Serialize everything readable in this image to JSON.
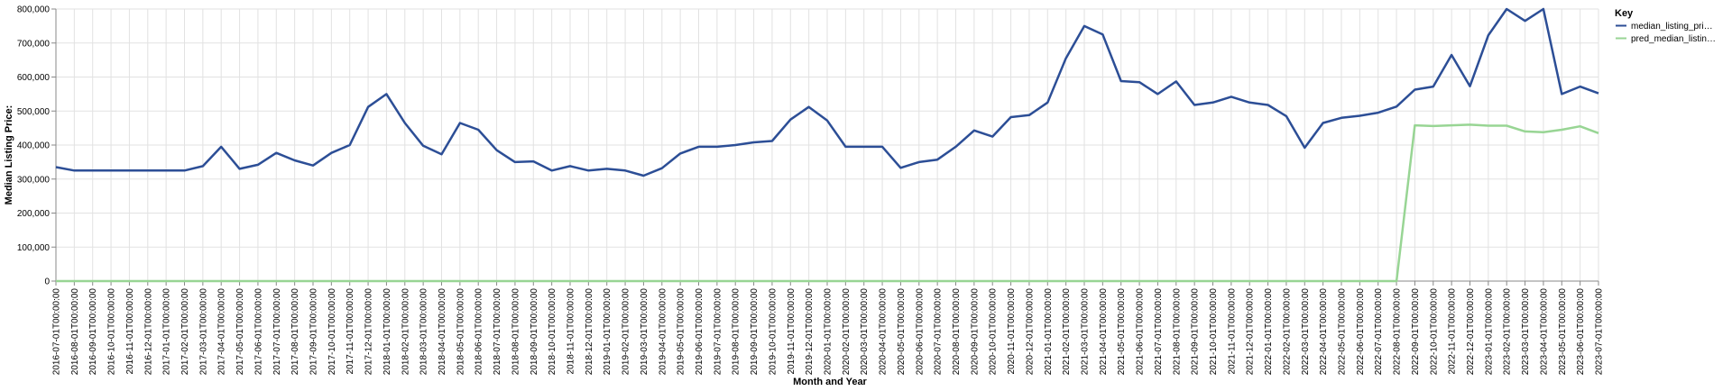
{
  "chart_data": {
    "type": "line",
    "xlabel": "Month and Year",
    "ylabel": "Median Listing Price:",
    "ylim": [
      0,
      800000
    ],
    "yticks": [
      "0",
      "100,000",
      "200,000",
      "300,000",
      "400,000",
      "500,000",
      "600,000",
      "700,000",
      "800,000"
    ],
    "grid": true,
    "legend": {
      "title": "Key",
      "placement": "top-right",
      "entries": [
        "median_listing_pri…",
        "pred_median_listin…"
      ]
    },
    "x": [
      "2016-07-01T00:00:00",
      "2016-08-01T00:00:00",
      "2016-09-01T00:00:00",
      "2016-10-01T00:00:00",
      "2016-11-01T00:00:00",
      "2016-12-01T00:00:00",
      "2017-01-01T00:00:00",
      "2017-02-01T00:00:00",
      "2017-03-01T00:00:00",
      "2017-04-01T00:00:00",
      "2017-05-01T00:00:00",
      "2017-06-01T00:00:00",
      "2017-07-01T00:00:00",
      "2017-08-01T00:00:00",
      "2017-09-01T00:00:00",
      "2017-10-01T00:00:00",
      "2017-11-01T00:00:00",
      "2017-12-01T00:00:00",
      "2018-01-01T00:00:00",
      "2018-02-01T00:00:00",
      "2018-03-01T00:00:00",
      "2018-04-01T00:00:00",
      "2018-05-01T00:00:00",
      "2018-06-01T00:00:00",
      "2018-07-01T00:00:00",
      "2018-08-01T00:00:00",
      "2018-09-01T00:00:00",
      "2018-10-01T00:00:00",
      "2018-11-01T00:00:00",
      "2018-12-01T00:00:00",
      "2019-01-01T00:00:00",
      "2019-02-01T00:00:00",
      "2019-03-01T00:00:00",
      "2019-04-01T00:00:00",
      "2019-05-01T00:00:00",
      "2019-06-01T00:00:00",
      "2019-07-01T00:00:00",
      "2019-08-01T00:00:00",
      "2019-09-01T00:00:00",
      "2019-10-01T00:00:00",
      "2019-11-01T00:00:00",
      "2019-12-01T00:00:00",
      "2020-01-01T00:00:00",
      "2020-02-01T00:00:00",
      "2020-03-01T00:00:00",
      "2020-04-01T00:00:00",
      "2020-05-01T00:00:00",
      "2020-06-01T00:00:00",
      "2020-07-01T00:00:00",
      "2020-08-01T00:00:00",
      "2020-09-01T00:00:00",
      "2020-10-01T00:00:00",
      "2020-11-01T00:00:00",
      "2020-12-01T00:00:00",
      "2021-01-01T00:00:00",
      "2021-02-01T00:00:00",
      "2021-03-01T00:00:00",
      "2021-04-01T00:00:00",
      "2021-05-01T00:00:00",
      "2021-06-01T00:00:00",
      "2021-07-01T00:00:00",
      "2021-08-01T00:00:00",
      "2021-09-01T00:00:00",
      "2021-10-01T00:00:00",
      "2021-11-01T00:00:00",
      "2021-12-01T00:00:00",
      "2022-01-01T00:00:00",
      "2022-02-01T00:00:00",
      "2022-03-01T00:00:00",
      "2022-04-01T00:00:00",
      "2022-05-01T00:00:00",
      "2022-06-01T00:00:00",
      "2022-07-01T00:00:00",
      "2022-08-01T00:00:00",
      "2022-09-01T00:00:00",
      "2022-10-01T00:00:00",
      "2022-11-01T00:00:00",
      "2022-12-01T00:00:00",
      "2023-01-01T00:00:00",
      "2023-02-01T00:00:00",
      "2023-03-01T00:00:00",
      "2023-04-01T00:00:00",
      "2023-05-01T00:00:00",
      "2023-06-01T00:00:00",
      "2023-07-01T00:00:00"
    ],
    "series": [
      {
        "name": "median_listing_pri…",
        "color": "#2c4e96",
        "values": [
          335000,
          325000,
          325000,
          325000,
          325000,
          325000,
          325000,
          325000,
          338000,
          395000,
          330000,
          342000,
          377000,
          355000,
          340000,
          377000,
          400000,
          512000,
          550000,
          465000,
          398000,
          373000,
          465000,
          445000,
          385000,
          350000,
          352000,
          325000,
          338000,
          325000,
          330000,
          325000,
          310000,
          332000,
          375000,
          395000,
          395000,
          400000,
          408000,
          412000,
          475000,
          512000,
          472000,
          395000,
          395000,
          395000,
          333000,
          350000,
          357000,
          395000,
          443000,
          425000,
          482000,
          488000,
          525000,
          655000,
          750000,
          725000,
          588000,
          585000,
          550000,
          587000,
          518000,
          525000,
          542000,
          525000,
          518000,
          485000,
          392000,
          465000,
          480000,
          486000,
          495000,
          513000,
          563000,
          572000,
          665000,
          573000,
          723000,
          800000,
          765000,
          800000,
          550000,
          572000,
          552000
        ]
      },
      {
        "name": "pred_median_listin…",
        "color": "#98d594",
        "values": [
          0,
          0,
          0,
          0,
          0,
          0,
          0,
          0,
          0,
          0,
          0,
          0,
          0,
          0,
          0,
          0,
          0,
          0,
          0,
          0,
          0,
          0,
          0,
          0,
          0,
          0,
          0,
          0,
          0,
          0,
          0,
          0,
          0,
          0,
          0,
          0,
          0,
          0,
          0,
          0,
          0,
          0,
          0,
          0,
          0,
          0,
          0,
          0,
          0,
          0,
          0,
          0,
          0,
          0,
          0,
          0,
          0,
          0,
          0,
          0,
          0,
          0,
          0,
          0,
          0,
          0,
          0,
          0,
          0,
          0,
          0,
          0,
          0,
          0,
          458000,
          456000,
          458000,
          460000,
          457000,
          457000,
          440000,
          438000,
          445000,
          455000,
          435000
        ]
      }
    ]
  }
}
